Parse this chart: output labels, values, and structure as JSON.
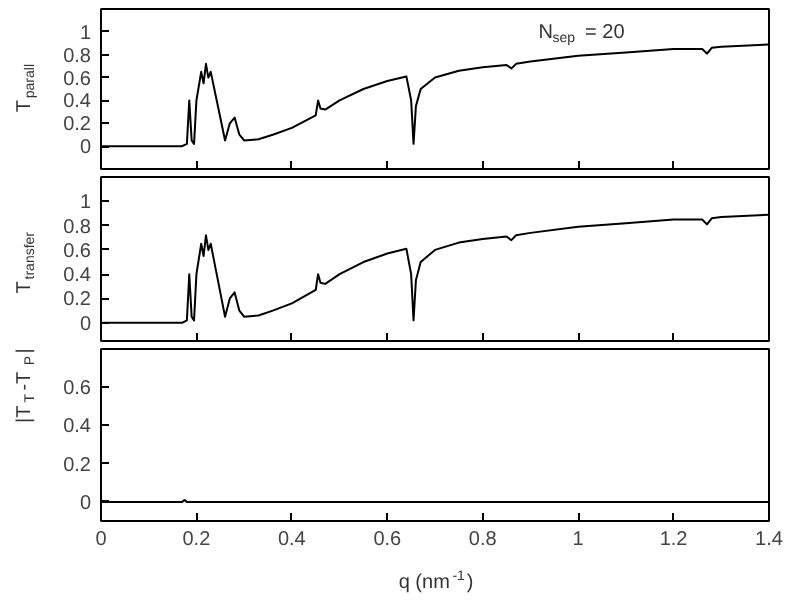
{
  "chart_data": [
    {
      "type": "line",
      "ylabel": "T$_{parall}$",
      "annotations": [
        "N$_{sep}$ = 20"
      ],
      "xlim": [
        0,
        1.4
      ],
      "xticks": [
        0,
        0.2,
        0.4,
        0.6,
        0.8,
        1,
        1.2,
        1.4
      ],
      "ylim": [
        -0.2,
        1.2
      ],
      "yticks": [
        0,
        0.2,
        0.4,
        0.6,
        0.8,
        1
      ],
      "tick_labels": "y",
      "grid": false,
      "x": [
        0,
        0.17,
        0.18,
        0.185,
        0.19,
        0.195,
        0.2,
        0.21,
        0.215,
        0.22,
        0.225,
        0.23,
        0.24,
        0.25,
        0.26,
        0.27,
        0.28,
        0.29,
        0.3,
        0.33,
        0.36,
        0.4,
        0.45,
        0.455,
        0.46,
        0.47,
        0.5,
        0.55,
        0.6,
        0.64,
        0.65,
        0.655,
        0.66,
        0.67,
        0.7,
        0.75,
        0.8,
        0.85,
        0.86,
        0.87,
        0.9,
        1,
        1.1,
        1.2,
        1.26,
        1.27,
        1.28,
        1.3,
        1.4
      ],
      "series": [
        {
          "color": "#000000",
          "values": [
            0,
            0,
            0.02,
            0.4,
            0.05,
            0.02,
            0.4,
            0.65,
            0.55,
            0.72,
            0.6,
            0.65,
            0.45,
            0.25,
            0.05,
            0.2,
            0.25,
            0.1,
            0.05,
            0.06,
            0.1,
            0.16,
            0.27,
            0.4,
            0.33,
            0.32,
            0.4,
            0.5,
            0.57,
            0.61,
            0.4,
            0.02,
            0.35,
            0.5,
            0.6,
            0.66,
            0.69,
            0.71,
            0.68,
            0.72,
            0.74,
            0.79,
            0.82,
            0.85,
            0.85,
            0.81,
            0.86,
            0.87,
            0.89
          ]
        }
      ]
    },
    {
      "type": "line",
      "ylabel": "T$_{transfer}$",
      "xlim": [
        0,
        1.4
      ],
      "xticks": [
        0,
        0.2,
        0.4,
        0.6,
        0.8,
        1,
        1.2,
        1.4
      ],
      "ylim": [
        -0.15,
        1.2
      ],
      "yticks": [
        0,
        0.2,
        0.4,
        0.6,
        0.8,
        1
      ],
      "tick_labels": "y",
      "grid": false,
      "x": [
        0,
        0.17,
        0.18,
        0.185,
        0.19,
        0.195,
        0.2,
        0.21,
        0.215,
        0.22,
        0.225,
        0.23,
        0.24,
        0.25,
        0.26,
        0.27,
        0.28,
        0.29,
        0.3,
        0.33,
        0.36,
        0.4,
        0.45,
        0.455,
        0.46,
        0.47,
        0.5,
        0.55,
        0.6,
        0.64,
        0.65,
        0.655,
        0.66,
        0.67,
        0.7,
        0.75,
        0.8,
        0.85,
        0.86,
        0.87,
        0.9,
        1,
        1.1,
        1.2,
        1.26,
        1.27,
        1.28,
        1.3,
        1.4
      ],
      "series": [
        {
          "color": "#000000",
          "values": [
            0,
            0,
            0.02,
            0.4,
            0.05,
            0.02,
            0.4,
            0.65,
            0.55,
            0.72,
            0.6,
            0.65,
            0.45,
            0.25,
            0.05,
            0.2,
            0.25,
            0.1,
            0.05,
            0.06,
            0.1,
            0.16,
            0.27,
            0.4,
            0.33,
            0.32,
            0.4,
            0.5,
            0.57,
            0.61,
            0.4,
            0.02,
            0.35,
            0.5,
            0.6,
            0.66,
            0.69,
            0.71,
            0.68,
            0.72,
            0.74,
            0.79,
            0.82,
            0.85,
            0.85,
            0.81,
            0.86,
            0.87,
            0.89
          ]
        }
      ]
    },
    {
      "type": "line",
      "ylabel": "|T$_{T}$-T$_{P}$|",
      "xlabel": "q (nm$^{-1}$)",
      "xlim": [
        0,
        1.4
      ],
      "xticks": [
        0,
        0.2,
        0.4,
        0.6,
        0.8,
        1,
        1.2,
        1.4
      ],
      "ylim": [
        -0.1,
        0.8
      ],
      "yticks": [
        0,
        0.2,
        0.4,
        0.6
      ],
      "grid": false,
      "x": [
        0,
        0.17,
        0.175,
        0.18,
        1.4
      ],
      "series": [
        {
          "color": "#000000",
          "values": [
            0,
            0,
            0.01,
            0,
            0
          ]
        }
      ]
    }
  ]
}
